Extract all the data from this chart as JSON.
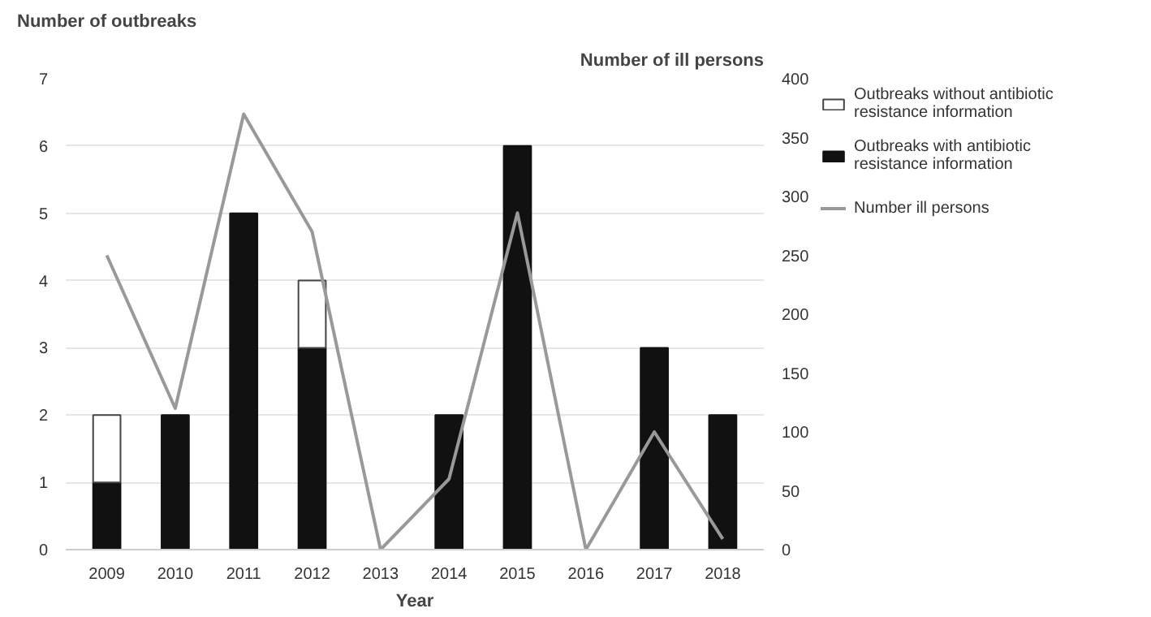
{
  "chart_data": {
    "type": "bar",
    "stacked": true,
    "xlabel": "Year",
    "ylabel": "Number of outbreaks",
    "y2label": "Number of ill persons",
    "categories": [
      "2009",
      "2010",
      "2011",
      "2012",
      "2013",
      "2014",
      "2015",
      "2016",
      "2017",
      "2018"
    ],
    "series": [
      {
        "name": "Outbreaks with antibiotic resistance information",
        "color": "#111111",
        "values": [
          1,
          2,
          5,
          3,
          0,
          2,
          6,
          0,
          3,
          2
        ]
      },
      {
        "name": "Outbreaks without antibiotic resistance information",
        "color": "#ffffff",
        "values": [
          1,
          0,
          0,
          1,
          0,
          0,
          0,
          0,
          0,
          0
        ]
      },
      {
        "name": "Number ill persons",
        "type": "line",
        "axis": "y2",
        "color": "#999999",
        "values": [
          250,
          120,
          370,
          270,
          0,
          60,
          286,
          0,
          100,
          9
        ]
      }
    ],
    "ylim": [
      0,
      7
    ],
    "yticks": [
      0,
      1,
      2,
      3,
      4,
      5,
      6,
      7
    ],
    "y2lim": [
      0,
      400
    ],
    "y2ticks": [
      0,
      50,
      100,
      150,
      200,
      250,
      300,
      350,
      400
    ],
    "grid": "y",
    "legend": "right"
  }
}
